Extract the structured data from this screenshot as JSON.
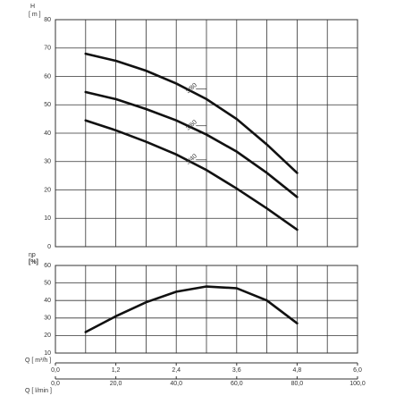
{
  "chart_data": [
    {
      "type": "line",
      "y_label": "H",
      "y_unit": "[ m ]",
      "xlim": [
        0,
        6.0
      ],
      "ylim": [
        0,
        80
      ],
      "yticks": [
        0,
        10,
        20,
        30,
        40,
        50,
        60,
        70,
        80
      ],
      "x": [
        0.6,
        1.2,
        1.8,
        2.4,
        3.0,
        3.6,
        4.2,
        4.8
      ],
      "series": [
        {
          "name": "3/80",
          "color": "#111111",
          "values": [
            68,
            65.5,
            62,
            57.5,
            52,
            45,
            36,
            26
          ]
        },
        {
          "name": "3/60",
          "color": "#111111",
          "values": [
            54.5,
            52,
            48.5,
            44.5,
            39.5,
            33.5,
            26,
            17.5
          ]
        },
        {
          "name": "3/40",
          "color": "#111111",
          "values": [
            44.5,
            41,
            37,
            32.5,
            27,
            20.5,
            13.5,
            6
          ]
        }
      ],
      "grid": true
    },
    {
      "type": "line",
      "y_label": "ηp",
      "y_unit": "[%]",
      "xlim": [
        0,
        6.0
      ],
      "ylim": [
        10,
        60
      ],
      "yticks": [
        10,
        20,
        30,
        40,
        50,
        60
      ],
      "x": [
        0.6,
        1.2,
        1.8,
        2.4,
        3.0,
        3.6,
        4.2,
        4.8
      ],
      "series": [
        {
          "color": "#111111",
          "values": [
            22,
            31,
            39,
            45,
            48,
            47,
            40,
            27
          ]
        }
      ],
      "x_label": "Q [ m³/h ]",
      "xticks": [
        {
          "value": 0,
          "label": "0,0"
        },
        {
          "value": 1.2,
          "label": "1,2"
        },
        {
          "value": 2.4,
          "label": "2,4"
        },
        {
          "value": 3.6,
          "label": "3,6"
        },
        {
          "value": 4.8,
          "label": "4,8"
        },
        {
          "value": 6.0,
          "label": "6,0"
        }
      ],
      "x2_label": "Q [ l/min ]",
      "x2lim": [
        0,
        100
      ],
      "x2ticks": [
        {
          "value": 0,
          "label": "0,0"
        },
        {
          "value": 20,
          "label": "20,0"
        },
        {
          "value": 40,
          "label": "40,0"
        },
        {
          "value": 60,
          "label": "60,0"
        },
        {
          "value": 80,
          "label": "80,0"
        },
        {
          "value": 100,
          "label": "100,0"
        }
      ],
      "grid": true
    }
  ]
}
